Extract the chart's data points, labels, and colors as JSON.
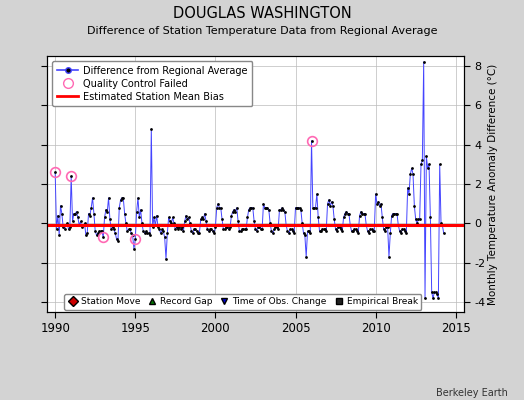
{
  "title": "DOUGLAS WASHINGTON",
  "subtitle": "Difference of Station Temperature Data from Regional Average",
  "ylabel": "Monthly Temperature Anomaly Difference (°C)",
  "background_color": "#d3d3d3",
  "plot_bg_color": "#ffffff",
  "xlim": [
    1989.5,
    2015.5
  ],
  "ylim": [
    -4.5,
    8.5
  ],
  "yticks": [
    -4,
    -2,
    0,
    2,
    4,
    6,
    8
  ],
  "xticks": [
    1990,
    1995,
    2000,
    2005,
    2010,
    2015
  ],
  "mean_bias": -0.1,
  "bias_color": "#ff0000",
  "line_color": "#4444ff",
  "marker_color": "#000000",
  "qc_color": "#ff69b4",
  "grid_color": "#bbbbbb",
  "watermark": "Berkeley Earth",
  "time_series": [
    [
      1990.0,
      2.6
    ],
    [
      1990.083,
      -0.3
    ],
    [
      1990.167,
      0.4
    ],
    [
      1990.25,
      -0.6
    ],
    [
      1990.333,
      0.9
    ],
    [
      1990.417,
      0.5
    ],
    [
      1990.5,
      -0.2
    ],
    [
      1990.583,
      -0.3
    ],
    [
      1990.667,
      -0.1
    ],
    [
      1990.75,
      0.0
    ],
    [
      1990.833,
      -0.3
    ],
    [
      1990.917,
      -0.2
    ],
    [
      1991.0,
      2.4
    ],
    [
      1991.083,
      0.1
    ],
    [
      1991.167,
      0.5
    ],
    [
      1991.25,
      0.5
    ],
    [
      1991.333,
      0.6
    ],
    [
      1991.417,
      0.3
    ],
    [
      1991.5,
      -0.1
    ],
    [
      1991.583,
      0.1
    ],
    [
      1991.667,
      -0.2
    ],
    [
      1991.75,
      -0.1
    ],
    [
      1991.833,
      0.0
    ],
    [
      1991.917,
      -0.6
    ],
    [
      1992.0,
      -0.5
    ],
    [
      1992.083,
      0.5
    ],
    [
      1992.167,
      0.4
    ],
    [
      1992.25,
      0.8
    ],
    [
      1992.333,
      1.3
    ],
    [
      1992.417,
      0.5
    ],
    [
      1992.5,
      -0.4
    ],
    [
      1992.583,
      -0.6
    ],
    [
      1992.667,
      -0.5
    ],
    [
      1992.75,
      -0.4
    ],
    [
      1992.833,
      -0.4
    ],
    [
      1992.917,
      -0.4
    ],
    [
      1993.0,
      -0.7
    ],
    [
      1993.083,
      0.3
    ],
    [
      1993.167,
      0.7
    ],
    [
      1993.25,
      0.6
    ],
    [
      1993.333,
      1.3
    ],
    [
      1993.417,
      0.2
    ],
    [
      1993.5,
      -0.3
    ],
    [
      1993.583,
      -0.2
    ],
    [
      1993.667,
      -0.3
    ],
    [
      1993.75,
      -0.5
    ],
    [
      1993.833,
      -0.8
    ],
    [
      1993.917,
      -0.9
    ],
    [
      1994.0,
      0.8
    ],
    [
      1994.083,
      1.2
    ],
    [
      1994.167,
      1.3
    ],
    [
      1994.25,
      1.3
    ],
    [
      1994.333,
      0.5
    ],
    [
      1994.417,
      0.0
    ],
    [
      1994.5,
      -0.4
    ],
    [
      1994.583,
      -0.3
    ],
    [
      1994.667,
      -0.3
    ],
    [
      1994.75,
      -0.5
    ],
    [
      1994.833,
      -0.6
    ],
    [
      1994.917,
      -1.3
    ],
    [
      1995.0,
      -0.8
    ],
    [
      1995.083,
      0.6
    ],
    [
      1995.167,
      1.3
    ],
    [
      1995.25,
      0.3
    ],
    [
      1995.333,
      0.7
    ],
    [
      1995.417,
      0.0
    ],
    [
      1995.5,
      -0.4
    ],
    [
      1995.583,
      -0.5
    ],
    [
      1995.667,
      -0.4
    ],
    [
      1995.75,
      -0.5
    ],
    [
      1995.833,
      -0.5
    ],
    [
      1995.917,
      -0.6
    ],
    [
      1996.0,
      4.8
    ],
    [
      1996.083,
      -0.2
    ],
    [
      1996.167,
      0.3
    ],
    [
      1996.25,
      -0.1
    ],
    [
      1996.333,
      0.4
    ],
    [
      1996.417,
      -0.2
    ],
    [
      1996.5,
      -0.3
    ],
    [
      1996.583,
      -0.5
    ],
    [
      1996.667,
      -0.3
    ],
    [
      1996.75,
      -0.4
    ],
    [
      1996.833,
      -0.7
    ],
    [
      1996.917,
      -1.8
    ],
    [
      1997.0,
      -0.5
    ],
    [
      1997.083,
      0.3
    ],
    [
      1997.167,
      0.1
    ],
    [
      1997.25,
      0.0
    ],
    [
      1997.333,
      0.3
    ],
    [
      1997.417,
      0.0
    ],
    [
      1997.5,
      -0.3
    ],
    [
      1997.583,
      -0.2
    ],
    [
      1997.667,
      -0.3
    ],
    [
      1997.75,
      -0.2
    ],
    [
      1997.833,
      -0.3
    ],
    [
      1997.917,
      -0.2
    ],
    [
      1998.0,
      -0.4
    ],
    [
      1998.083,
      0.1
    ],
    [
      1998.167,
      0.4
    ],
    [
      1998.25,
      0.2
    ],
    [
      1998.333,
      0.3
    ],
    [
      1998.417,
      0.0
    ],
    [
      1998.5,
      -0.4
    ],
    [
      1998.583,
      -0.5
    ],
    [
      1998.667,
      -0.3
    ],
    [
      1998.75,
      -0.3
    ],
    [
      1998.833,
      -0.4
    ],
    [
      1998.917,
      -0.5
    ],
    [
      1999.0,
      -0.5
    ],
    [
      1999.083,
      0.2
    ],
    [
      1999.167,
      0.3
    ],
    [
      1999.25,
      0.2
    ],
    [
      1999.333,
      0.5
    ],
    [
      1999.417,
      0.1
    ],
    [
      1999.5,
      -0.3
    ],
    [
      1999.583,
      -0.4
    ],
    [
      1999.667,
      -0.3
    ],
    [
      1999.75,
      -0.3
    ],
    [
      1999.833,
      -0.4
    ],
    [
      1999.917,
      -0.5
    ],
    [
      2000.0,
      -0.2
    ],
    [
      2000.083,
      0.8
    ],
    [
      2000.167,
      1.0
    ],
    [
      2000.25,
      0.8
    ],
    [
      2000.333,
      0.8
    ],
    [
      2000.417,
      0.2
    ],
    [
      2000.5,
      -0.3
    ],
    [
      2000.583,
      -0.3
    ],
    [
      2000.667,
      -0.2
    ],
    [
      2000.75,
      -0.2
    ],
    [
      2000.833,
      -0.3
    ],
    [
      2000.917,
      -0.2
    ],
    [
      2001.0,
      0.4
    ],
    [
      2001.083,
      0.6
    ],
    [
      2001.167,
      0.7
    ],
    [
      2001.25,
      0.6
    ],
    [
      2001.333,
      0.8
    ],
    [
      2001.417,
      0.1
    ],
    [
      2001.5,
      -0.4
    ],
    [
      2001.583,
      -0.4
    ],
    [
      2001.667,
      -0.3
    ],
    [
      2001.75,
      -0.3
    ],
    [
      2001.833,
      -0.3
    ],
    [
      2001.917,
      -0.3
    ],
    [
      2002.0,
      0.3
    ],
    [
      2002.083,
      0.7
    ],
    [
      2002.167,
      0.8
    ],
    [
      2002.25,
      0.8
    ],
    [
      2002.333,
      0.8
    ],
    [
      2002.417,
      0.1
    ],
    [
      2002.5,
      -0.3
    ],
    [
      2002.583,
      -0.4
    ],
    [
      2002.667,
      -0.2
    ],
    [
      2002.75,
      -0.2
    ],
    [
      2002.833,
      -0.3
    ],
    [
      2002.917,
      -0.3
    ],
    [
      2003.0,
      1.0
    ],
    [
      2003.083,
      0.8
    ],
    [
      2003.167,
      0.8
    ],
    [
      2003.25,
      0.8
    ],
    [
      2003.333,
      0.7
    ],
    [
      2003.417,
      0.0
    ],
    [
      2003.5,
      -0.4
    ],
    [
      2003.583,
      -0.5
    ],
    [
      2003.667,
      -0.3
    ],
    [
      2003.75,
      -0.2
    ],
    [
      2003.833,
      -0.2
    ],
    [
      2003.917,
      -0.3
    ],
    [
      2004.0,
      0.7
    ],
    [
      2004.083,
      0.7
    ],
    [
      2004.167,
      0.8
    ],
    [
      2004.25,
      0.7
    ],
    [
      2004.333,
      0.6
    ],
    [
      2004.417,
      -0.1
    ],
    [
      2004.5,
      -0.4
    ],
    [
      2004.583,
      -0.5
    ],
    [
      2004.667,
      -0.3
    ],
    [
      2004.75,
      -0.3
    ],
    [
      2004.833,
      -0.4
    ],
    [
      2004.917,
      -0.5
    ],
    [
      2005.0,
      0.8
    ],
    [
      2005.083,
      0.8
    ],
    [
      2005.167,
      0.8
    ],
    [
      2005.25,
      0.8
    ],
    [
      2005.333,
      0.7
    ],
    [
      2005.417,
      0.0
    ],
    [
      2005.5,
      -0.5
    ],
    [
      2005.583,
      -0.6
    ],
    [
      2005.667,
      -1.7
    ],
    [
      2005.75,
      -0.4
    ],
    [
      2005.833,
      -0.4
    ],
    [
      2005.917,
      -0.5
    ],
    [
      2006.0,
      4.2
    ],
    [
      2006.083,
      0.8
    ],
    [
      2006.167,
      0.8
    ],
    [
      2006.25,
      0.8
    ],
    [
      2006.333,
      1.5
    ],
    [
      2006.417,
      0.3
    ],
    [
      2006.5,
      -0.4
    ],
    [
      2006.583,
      -0.4
    ],
    [
      2006.667,
      -0.3
    ],
    [
      2006.75,
      -0.3
    ],
    [
      2006.833,
      -0.3
    ],
    [
      2006.917,
      -0.4
    ],
    [
      2007.0,
      1.0
    ],
    [
      2007.083,
      1.2
    ],
    [
      2007.167,
      0.9
    ],
    [
      2007.25,
      1.1
    ],
    [
      2007.333,
      0.9
    ],
    [
      2007.417,
      0.2
    ],
    [
      2007.5,
      -0.3
    ],
    [
      2007.583,
      -0.4
    ],
    [
      2007.667,
      -0.2
    ],
    [
      2007.75,
      -0.2
    ],
    [
      2007.833,
      -0.3
    ],
    [
      2007.917,
      -0.4
    ],
    [
      2008.0,
      0.3
    ],
    [
      2008.083,
      0.5
    ],
    [
      2008.167,
      0.6
    ],
    [
      2008.25,
      0.5
    ],
    [
      2008.333,
      0.5
    ],
    [
      2008.417,
      -0.1
    ],
    [
      2008.5,
      -0.4
    ],
    [
      2008.583,
      -0.4
    ],
    [
      2008.667,
      -0.3
    ],
    [
      2008.75,
      -0.3
    ],
    [
      2008.833,
      -0.4
    ],
    [
      2008.917,
      -0.5
    ],
    [
      2009.0,
      0.4
    ],
    [
      2009.083,
      0.6
    ],
    [
      2009.167,
      0.5
    ],
    [
      2009.25,
      0.5
    ],
    [
      2009.333,
      0.5
    ],
    [
      2009.417,
      -0.1
    ],
    [
      2009.5,
      -0.4
    ],
    [
      2009.583,
      -0.5
    ],
    [
      2009.667,
      -0.3
    ],
    [
      2009.75,
      -0.3
    ],
    [
      2009.833,
      -0.4
    ],
    [
      2009.917,
      -0.4
    ],
    [
      2010.0,
      1.5
    ],
    [
      2010.083,
      1.0
    ],
    [
      2010.167,
      1.1
    ],
    [
      2010.25,
      0.9
    ],
    [
      2010.333,
      1.0
    ],
    [
      2010.417,
      0.3
    ],
    [
      2010.5,
      -0.3
    ],
    [
      2010.583,
      -0.4
    ],
    [
      2010.667,
      -0.2
    ],
    [
      2010.75,
      -0.2
    ],
    [
      2010.833,
      -1.7
    ],
    [
      2010.917,
      -0.5
    ],
    [
      2011.0,
      0.4
    ],
    [
      2011.083,
      0.5
    ],
    [
      2011.167,
      0.5
    ],
    [
      2011.25,
      0.5
    ],
    [
      2011.333,
      0.5
    ],
    [
      2011.417,
      -0.1
    ],
    [
      2011.5,
      -0.4
    ],
    [
      2011.583,
      -0.5
    ],
    [
      2011.667,
      -0.3
    ],
    [
      2011.75,
      -0.3
    ],
    [
      2011.833,
      -0.4
    ],
    [
      2011.917,
      -0.5
    ],
    [
      2012.0,
      1.8
    ],
    [
      2012.083,
      1.5
    ],
    [
      2012.167,
      2.5
    ],
    [
      2012.25,
      2.8
    ],
    [
      2012.333,
      2.5
    ],
    [
      2012.417,
      0.9
    ],
    [
      2012.5,
      0.2
    ],
    [
      2012.583,
      0.0
    ],
    [
      2012.667,
      0.2
    ],
    [
      2012.75,
      0.2
    ],
    [
      2012.833,
      3.0
    ],
    [
      2012.917,
      3.2
    ],
    [
      2013.0,
      8.2
    ],
    [
      2013.083,
      -3.8
    ],
    [
      2013.167,
      3.4
    ],
    [
      2013.25,
      2.8
    ],
    [
      2013.333,
      3.0
    ],
    [
      2013.417,
      0.3
    ],
    [
      2013.5,
      -3.5
    ],
    [
      2013.583,
      -3.8
    ],
    [
      2013.667,
      -3.5
    ],
    [
      2013.75,
      -3.5
    ],
    [
      2013.833,
      -3.6
    ],
    [
      2013.917,
      -3.8
    ],
    [
      2014.0,
      3.0
    ],
    [
      2014.083,
      0.0
    ],
    [
      2014.167,
      -0.1
    ],
    [
      2014.25,
      -0.5
    ]
  ],
  "qc_failed_times": [
    1990.0,
    1991.0,
    1993.0,
    1995.0,
    2006.0
  ],
  "legend_top": [
    "Difference from Regional Average",
    "Quality Control Failed",
    "Estimated Station Mean Bias"
  ],
  "legend_bot": [
    "Station Move",
    "Record Gap",
    "Time of Obs. Change",
    "Empirical Break"
  ]
}
